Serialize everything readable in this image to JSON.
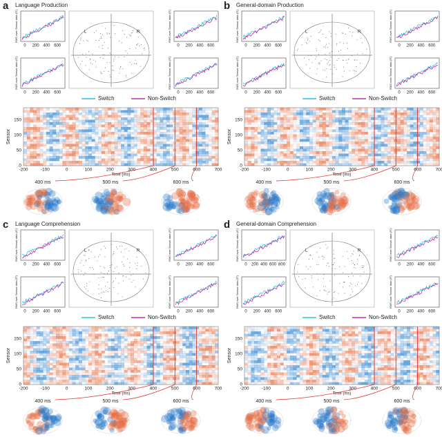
{
  "panels": [
    {
      "letter": "a",
      "title": "Language Production",
      "plots": [
        {
          "xticks": [
            "0",
            "200",
            "400",
            "600"
          ],
          "ylabel": "RMS over Sensor data (fT)"
        },
        {
          "xticks": [
            "0",
            "200",
            "400",
            "600"
          ],
          "ylabel": "RMS over Sensor data (fT)"
        },
        {
          "xticks": [
            "0",
            "200",
            "400",
            "600"
          ],
          "ylabel": "RMS over Sensor data (fT)"
        },
        {
          "xticks": [
            "0",
            "200",
            "400",
            "600"
          ],
          "ylabel": "RMS over Sensor data (fT)"
        }
      ],
      "head_labels": [
        "L",
        "R"
      ],
      "legend": [
        "Switch",
        "Non-Switch"
      ],
      "heatmap_yticks": [
        "0",
        "50",
        "100",
        "150"
      ],
      "heatmap_xticks": [
        "-200",
        "-100",
        "0",
        "100",
        "200",
        "300",
        "400",
        "500",
        "600",
        "700"
      ],
      "heatmap_xlabel": "Time (ms)",
      "heatmap_ylabel": "Sensor",
      "topo_labels": [
        "400 ms",
        "500 ms",
        "600 ms"
      ]
    },
    {
      "letter": "b",
      "title": "General-domain Production",
      "plots": [
        {
          "xticks": [
            "0",
            "200",
            "400",
            "600"
          ],
          "ylabel": "RMS over Sensor data (fT)"
        },
        {
          "xticks": [
            "0",
            "200",
            "400",
            "600"
          ],
          "ylabel": "RMS over Sensor data (fT)"
        },
        {
          "xticks": [
            "0",
            "200",
            "400",
            "600"
          ],
          "ylabel": "RMS over Sensor data (fT)"
        },
        {
          "xticks": [
            "0",
            "200",
            "400",
            "600"
          ],
          "ylabel": "RMS over Sensor data (fT)"
        }
      ],
      "head_labels": [
        "L",
        "R"
      ],
      "legend": [
        "Switch",
        "Non-Switch"
      ],
      "heatmap_yticks": [
        "0",
        "50",
        "100",
        "150"
      ],
      "heatmap_xticks": [
        "-200",
        "-100",
        "0",
        "100",
        "200",
        "300",
        "400",
        "500",
        "600",
        "700"
      ],
      "heatmap_xlabel": "Time (ms)",
      "heatmap_ylabel": "Sensor",
      "topo_labels": [
        "400 ms",
        "500 ms",
        "600 ms"
      ]
    },
    {
      "letter": "c",
      "title": "Language Comprehension",
      "plots": [
        {
          "xticks": [
            "0",
            "200",
            "400",
            "600"
          ],
          "ylabel": "RMS over Sensor data (fT)"
        },
        {
          "xticks": [
            "0",
            "200",
            "400",
            "600"
          ],
          "ylabel": "RMS over Sensor data (fT)"
        },
        {
          "xticks": [
            "0",
            "200",
            "400",
            "600"
          ],
          "ylabel": "RMS over Sensor data (fT)"
        },
        {
          "xticks": [
            "0",
            "200",
            "400",
            "600"
          ],
          "ylabel": "RMS over Sensor data (fT)"
        }
      ],
      "head_labels": [
        "L",
        "R"
      ],
      "legend": [
        "Switch",
        "Non-Switch"
      ],
      "heatmap_yticks": [
        "0",
        "50",
        "100",
        "150"
      ],
      "heatmap_xticks": [
        "-200",
        "-100",
        "0",
        "100",
        "200",
        "300",
        "400",
        "500",
        "600",
        "700"
      ],
      "heatmap_xlabel": "Time (ms)",
      "heatmap_ylabel": "Sensor",
      "topo_labels": [
        "400 ms",
        "500 ms",
        "600 ms"
      ]
    },
    {
      "letter": "d",
      "title": "General-domain Comprehension",
      "plots": [
        {
          "xticks": [
            "0",
            "200",
            "400",
            "600",
            "800"
          ],
          "ylabel": "RMS over Sensor data (fT)"
        },
        {
          "xticks": [
            "0",
            "200",
            "400",
            "600"
          ],
          "ylabel": "RMS over Sensor data (fT)"
        },
        {
          "xticks": [
            "0",
            "200",
            "400",
            "600"
          ],
          "ylabel": "RMS over Sensor data (fT)"
        },
        {
          "xticks": [
            "0",
            "200",
            "400",
            "600"
          ],
          "ylabel": "RMS over Sensor data (fT)"
        }
      ],
      "head_labels": [
        "L",
        "R"
      ],
      "legend": [
        "Switch",
        "Non-Switch"
      ],
      "heatmap_yticks": [
        "0",
        "50",
        "100",
        "150"
      ],
      "heatmap_xticks": [
        "-200",
        "-100",
        "0",
        "100",
        "200",
        "300",
        "400",
        "500",
        "600",
        "700"
      ],
      "heatmap_xlabel": "Time (ms)",
      "heatmap_ylabel": "Sensor",
      "topo_labels": [
        "400 ms",
        "500 ms",
        "600 ms"
      ]
    }
  ]
}
